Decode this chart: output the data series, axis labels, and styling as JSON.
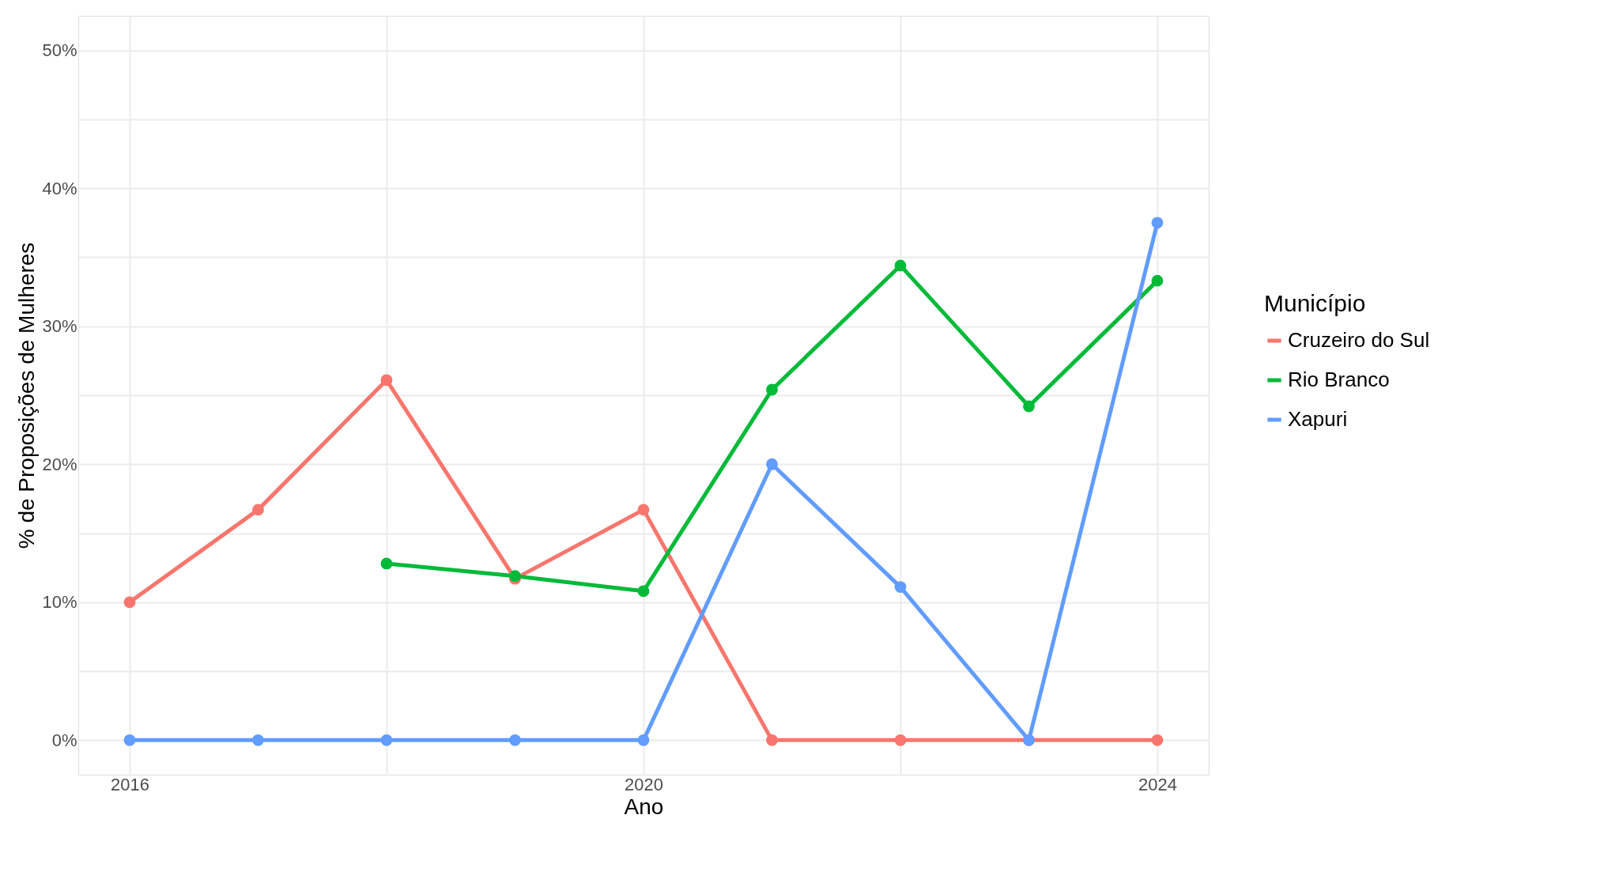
{
  "chart_data": {
    "type": "line",
    "xlabel": "Ano",
    "ylabel": "% de Proposições de Mulheres",
    "legend_title": "Município",
    "x": [
      2016,
      2017,
      2018,
      2019,
      2020,
      2021,
      2022,
      2023,
      2024
    ],
    "series": [
      {
        "name": "Cruzeiro do Sul",
        "color": "#f8766d",
        "values": [
          10,
          16.7,
          26.1,
          11.7,
          16.7,
          0,
          0,
          0,
          0
        ]
      },
      {
        "name": "Rio Branco",
        "color": "#00ba38",
        "values": [
          null,
          null,
          12.8,
          11.9,
          10.8,
          25.4,
          34.4,
          24.2,
          33.3
        ]
      },
      {
        "name": "Xapuri",
        "color": "#619cff",
        "values": [
          0,
          0,
          0,
          0,
          0,
          20,
          11.1,
          0,
          37.5
        ]
      }
    ],
    "xlim": [
      2015.6,
      2024.4
    ],
    "xticks": [
      2016,
      {
        "value": 2018,
        "label": null
      },
      2020,
      {
        "value": 2022,
        "label": null
      },
      2024
    ],
    "ylim": [
      -2.5,
      52.5
    ],
    "yticks": [
      {
        "value": 0,
        "label": "0%"
      },
      {
        "value": 5,
        "label": null
      },
      {
        "value": 10,
        "label": "10%"
      },
      {
        "value": 15,
        "label": null
      },
      {
        "value": 20,
        "label": "20%"
      },
      {
        "value": 25,
        "label": null
      },
      {
        "value": 30,
        "label": "30%"
      },
      {
        "value": 35,
        "label": null
      },
      {
        "value": 40,
        "label": "40%"
      },
      {
        "value": 45,
        "label": null
      },
      {
        "value": 50,
        "label": "50%"
      }
    ],
    "grid": true,
    "legend": "right",
    "marker": "circle",
    "line_style": "solid"
  }
}
